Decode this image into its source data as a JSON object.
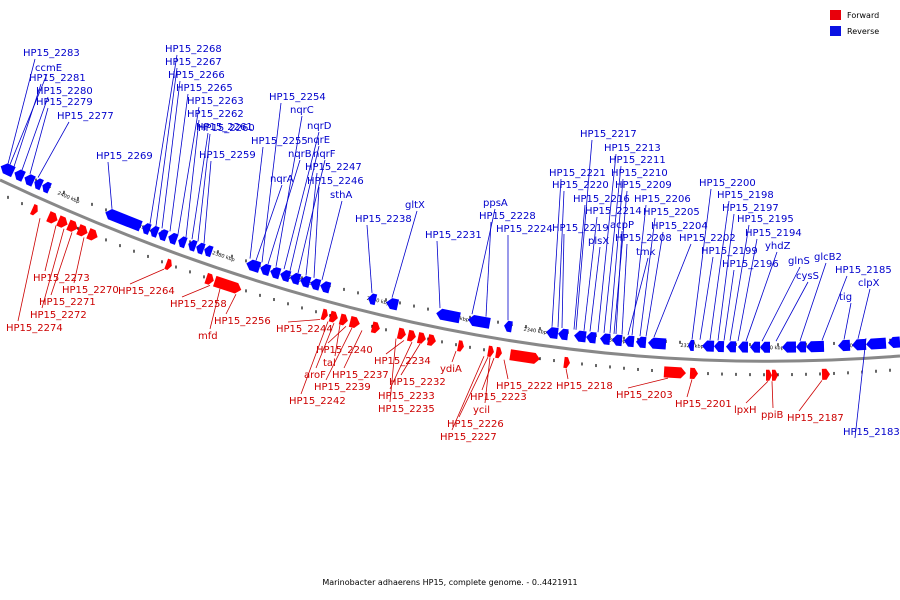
{
  "legend": [
    {
      "label": "Forward",
      "color": "#e8000b"
    },
    {
      "label": "Reverse",
      "color": "#0a12e3"
    }
  ],
  "caption": "Marinobacter adhaerens HP15, complete genome. - 0..4421911",
  "colors": {
    "forward": "#ff0000",
    "reverse": "#0000ff",
    "forward_label": "#cc0000",
    "reverse_label": "#0000cc",
    "backbone": "#888888"
  },
  "ticks": [
    "2400 kbp",
    "2390 kbp",
    "2380 kbp",
    "2370 kbp",
    "2360 kbp",
    "2350 kbp",
    "2340 kbp",
    "2330 kbp",
    "2320 kbp",
    "2310 kbp",
    "2300 kbp"
  ],
  "forward_genes": [
    "HP15_2274",
    "HP15_2273",
    "HP15_2272",
    "HP15_2271",
    "HP15_2270",
    "HP15_2264",
    "HP15_2258",
    "mfd",
    "HP15_2256",
    "HP15_2244",
    "HP15_2242",
    "aroF",
    "tal",
    "HP15_2240",
    "HP15_2239",
    "HP15_2237",
    "HP15_2235",
    "HP15_2234",
    "HP15_2233",
    "HP15_2232",
    "ydiA",
    "HP15_2227",
    "HP15_2226",
    "ycil",
    "HP15_2223",
    "HP15_2222",
    "HP15_2218",
    "HP15_2203",
    "HP15_2201",
    "lpxH",
    "ppiB",
    "HP15_2187"
  ],
  "reverse_genes": [
    "HP15_2283",
    "ccmE",
    "HP15_2281",
    "HP15_2280",
    "HP15_2279",
    "HP15_2277",
    "HP15_2269",
    "HP15_2268",
    "HP15_2267",
    "HP15_2266",
    "HP15_2265",
    "HP15_2263",
    "HP15_2262",
    "HP15_2261",
    "HP15_2260",
    "HP15_2259",
    "HP15_2255",
    "nqrA",
    "HP15_2254",
    "nqrC",
    "nqrD",
    "nqrB",
    "nqrE",
    "nqrF",
    "HP15_2247",
    "HP15_2246",
    "sthA",
    "HP15_2238",
    "gltX",
    "HP15_2231",
    "ppsA",
    "HP15_2228",
    "HP15_2224",
    "HP15_2221",
    "HP15_2220",
    "HP15_2219",
    "HP15_2217",
    "HP15_2216",
    "HP15_2214",
    "plsX",
    "HP15_2213",
    "HP15_2211",
    "HP15_2210",
    "HP15_2209",
    "acpP",
    "HP15_2208",
    "tmk",
    "HP15_2206",
    "HP15_2205",
    "HP15_2204",
    "HP15_2202",
    "HP15_2200",
    "HP15_2199",
    "HP15_2198",
    "HP15_2197",
    "HP15_2196",
    "HP15_2195",
    "HP15_2194",
    "yhdZ",
    "glnS",
    "cysS",
    "glcB2",
    "HP15_2185",
    "tig",
    "clpX",
    "HP15_2183"
  ]
}
